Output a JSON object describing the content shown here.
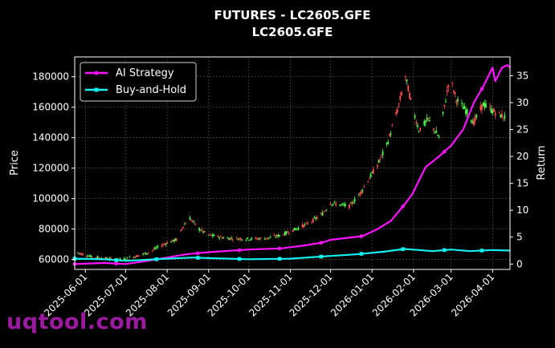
{
  "chart_data": {
    "type": "candlestick",
    "title": "FUTURES - LC2605.GFE",
    "subtitle": "LC2605.GFE",
    "ylabel_left": "Price",
    "ylabel_right": "Return",
    "xlabel": "",
    "ylim_left": [
      53500,
      193000
    ],
    "ylim_right": [
      -1,
      38.5
    ],
    "xlim": [
      "2025-05-24",
      "2026-04-14"
    ],
    "grid": true,
    "legend_position": "top-left",
    "x_ticks": [
      "2025-06-01",
      "2025-07-01",
      "2025-08-01",
      "2025-09-01",
      "2025-10-01",
      "2025-11-01",
      "2025-12-01",
      "2026-01-01",
      "2026-02-01",
      "2026-03-01",
      "2026-04-01"
    ],
    "y_ticks_left": [
      60000,
      80000,
      100000,
      120000,
      140000,
      160000,
      180000
    ],
    "y_ticks_right": [
      0,
      5,
      10,
      15,
      20,
      25,
      30,
      35
    ],
    "candle_colors": {
      "up": "#4cff4c",
      "down": "#ff4d4d"
    },
    "price_path": [
      [
        "2025-05-26",
        64500
      ],
      [
        "2025-06-05",
        62000
      ],
      [
        "2025-06-18",
        60500
      ],
      [
        "2025-06-28",
        60000
      ],
      [
        "2025-07-08",
        62000
      ],
      [
        "2025-07-18",
        64500
      ],
      [
        "2025-07-25",
        68000
      ],
      [
        "2025-08-01",
        71000
      ],
      [
        "2025-08-08",
        73000
      ],
      [
        "2025-08-13",
        82000
      ],
      [
        "2025-08-18",
        87000
      ],
      [
        "2025-08-25",
        80000
      ],
      [
        "2025-09-01",
        76000
      ],
      [
        "2025-09-15",
        74000
      ],
      [
        "2025-10-01",
        73500
      ],
      [
        "2025-10-15",
        74000
      ],
      [
        "2025-10-25",
        76000
      ],
      [
        "2025-11-05",
        80000
      ],
      [
        "2025-11-15",
        84000
      ],
      [
        "2025-11-25",
        90000
      ],
      [
        "2025-12-01",
        97000
      ],
      [
        "2025-12-08",
        96000
      ],
      [
        "2025-12-15",
        95000
      ],
      [
        "2025-12-22",
        102000
      ],
      [
        "2025-12-29",
        112000
      ],
      [
        "2026-01-05",
        122000
      ],
      [
        "2026-01-12",
        135000
      ],
      [
        "2026-01-20",
        158000
      ],
      [
        "2026-01-26",
        180000
      ],
      [
        "2026-01-31",
        160000
      ],
      [
        "2026-02-05",
        145000
      ],
      [
        "2026-02-12",
        152000
      ],
      [
        "2026-02-20",
        140000
      ],
      [
        "2026-02-28",
        180000
      ],
      [
        "2026-03-05",
        165000
      ],
      [
        "2026-03-12",
        158000
      ],
      [
        "2026-03-18",
        150000
      ],
      [
        "2026-03-25",
        162000
      ],
      [
        "2026-04-02",
        157000
      ],
      [
        "2026-04-11",
        153000
      ]
    ],
    "series": [
      {
        "name": "AI Strategy",
        "color": "#ff14ff",
        "points": [
          [
            "2025-05-24",
            0.0
          ],
          [
            "2025-06-15",
            0.2
          ],
          [
            "2025-07-01",
            0.0
          ],
          [
            "2025-07-15",
            0.5
          ],
          [
            "2025-08-01",
            1.2
          ],
          [
            "2025-08-15",
            1.8
          ],
          [
            "2025-09-01",
            2.2
          ],
          [
            "2025-10-01",
            2.7
          ],
          [
            "2025-10-25",
            2.9
          ],
          [
            "2025-11-10",
            3.4
          ],
          [
            "2025-11-25",
            4.0
          ],
          [
            "2025-12-01",
            4.5
          ],
          [
            "2025-12-15",
            4.9
          ],
          [
            "2025-12-25",
            5.2
          ],
          [
            "2026-01-05",
            6.5
          ],
          [
            "2026-01-15",
            8.0
          ],
          [
            "2026-01-25",
            11.0
          ],
          [
            "2026-01-31",
            13.0
          ],
          [
            "2026-02-10",
            18.0
          ],
          [
            "2026-02-20",
            20.0
          ],
          [
            "2026-03-01",
            22.0
          ],
          [
            "2026-03-10",
            25.0
          ],
          [
            "2026-03-18",
            30.0
          ],
          [
            "2026-03-25",
            33.0
          ],
          [
            "2026-04-01",
            36.5
          ],
          [
            "2026-04-03",
            34.0
          ],
          [
            "2026-04-08",
            36.5
          ],
          [
            "2026-04-12",
            37.0
          ],
          [
            "2026-04-14",
            36.5
          ]
        ],
        "marker_dates": [
          "2025-05-24",
          "2025-06-24",
          "2025-07-24",
          "2025-08-24",
          "2025-09-24",
          "2025-10-24",
          "2025-11-24",
          "2025-12-24",
          "2026-01-24",
          "2026-02-24",
          "2026-03-24"
        ]
      },
      {
        "name": "Buy-and-Hold",
        "color": "#14f0f0",
        "points": [
          [
            "2025-05-24",
            1.0
          ],
          [
            "2025-06-15",
            0.9
          ],
          [
            "2025-07-01",
            0.6
          ],
          [
            "2025-08-01",
            1.0
          ],
          [
            "2025-08-20",
            1.2
          ],
          [
            "2025-09-01",
            1.1
          ],
          [
            "2025-10-01",
            0.9
          ],
          [
            "2025-11-01",
            1.0
          ],
          [
            "2025-12-01",
            1.5
          ],
          [
            "2025-12-20",
            1.8
          ],
          [
            "2026-01-10",
            2.3
          ],
          [
            "2026-01-25",
            2.8
          ],
          [
            "2026-02-05",
            2.6
          ],
          [
            "2026-02-15",
            2.4
          ],
          [
            "2026-03-01",
            2.7
          ],
          [
            "2026-03-15",
            2.4
          ],
          [
            "2026-04-01",
            2.6
          ],
          [
            "2026-04-14",
            2.5
          ]
        ],
        "marker_dates": [
          "2025-05-24",
          "2025-06-24",
          "2025-07-24",
          "2025-08-24",
          "2025-09-24",
          "2025-10-24",
          "2025-11-24",
          "2025-12-24",
          "2026-01-24",
          "2026-02-24",
          "2026-03-24"
        ]
      }
    ]
  },
  "watermark": "uqtool.com"
}
